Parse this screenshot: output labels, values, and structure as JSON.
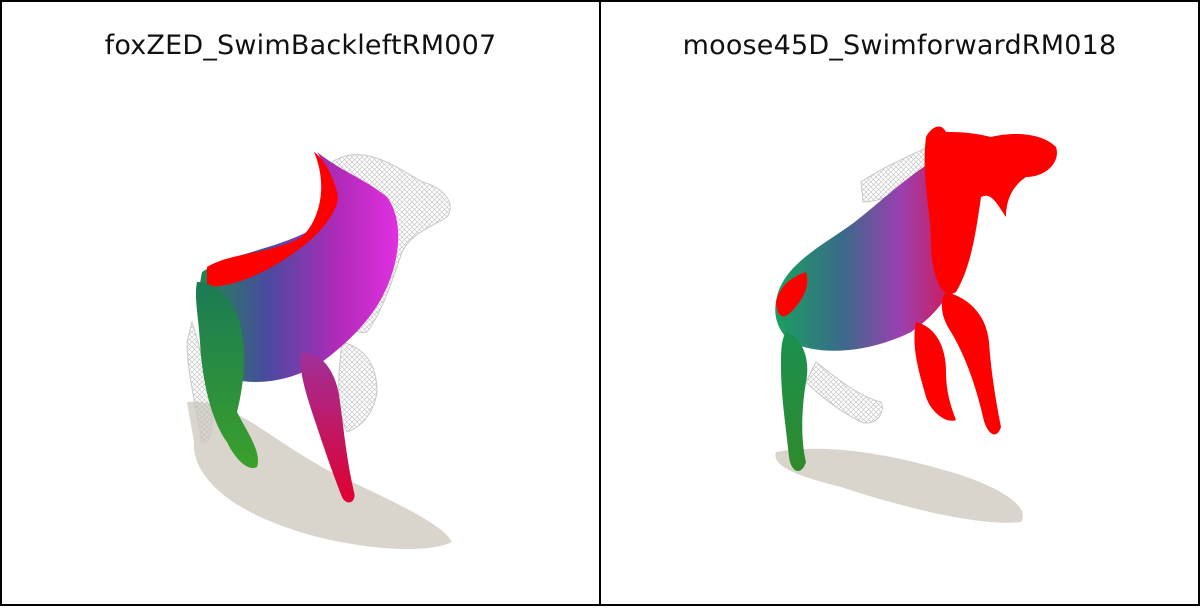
{
  "panels": [
    {
      "title": "foxZED_SwimBackleftRM007"
    },
    {
      "title": "moose45D_SwimforwardRM018"
    }
  ],
  "colors": {
    "border": "#000000",
    "background": "#ffffff",
    "shadow": "#d9d5cc",
    "mesh": "#cfcfcf",
    "red": "#ff0000",
    "magenta": "#c02ad0",
    "green": "#1f8a4a"
  }
}
